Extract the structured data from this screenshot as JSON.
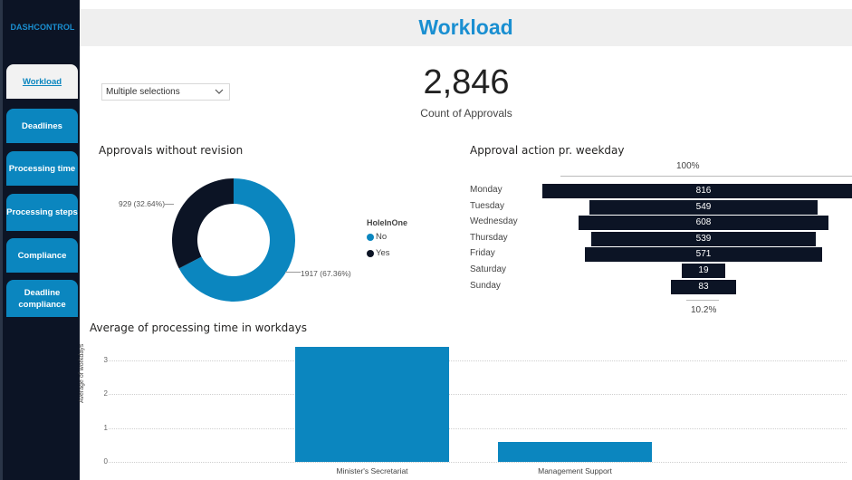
{
  "sidebar": {
    "brand": "DASHCONTROL",
    "items": [
      {
        "label": "Workload",
        "active": true
      },
      {
        "label": "Deadlines",
        "active": false
      },
      {
        "label": "Processing time",
        "active": false
      },
      {
        "label": "Processing steps",
        "active": false
      },
      {
        "label": "Compliance",
        "active": false
      },
      {
        "label": "Deadline compliance",
        "active": false
      }
    ]
  },
  "header": {
    "title": "Workload"
  },
  "slicer": {
    "value": "Multiple selections",
    "icon": "chevron-down-icon"
  },
  "kpi": {
    "value": "2,846",
    "label": "Count of Approvals"
  },
  "colors": {
    "primary": "#0b86bf",
    "dark": "#0c1425",
    "title": "#1a8fd1"
  },
  "donut": {
    "title": "Approvals without revision",
    "legend_title": "HoleInOne",
    "chart_data": {
      "type": "pie",
      "slices": [
        {
          "name": "No",
          "value": 1917,
          "label": "1917 (67.36%)",
          "color": "#0b86bf"
        },
        {
          "name": "Yes",
          "value": 929,
          "label": "929 (32.64%)",
          "color": "#0c1425"
        }
      ]
    }
  },
  "funnel": {
    "title": "Approval action pr. weekday",
    "top_label": "100%",
    "bottom_label": "10.2%",
    "chart_data": {
      "type": "bar",
      "categories": [
        "Monday",
        "Tuesday",
        "Wednesday",
        "Thursday",
        "Friday",
        "Saturday",
        "Sunday"
      ],
      "values": [
        816,
        549,
        608,
        539,
        571,
        19,
        83
      ]
    }
  },
  "bar_chart": {
    "title": "Average of processing time in workdays",
    "ylabel": "Average of workdays",
    "chart_data": {
      "type": "bar",
      "categories": [
        "Minister's Secretariat",
        "Management Support"
      ],
      "values": [
        3.4,
        0.6
      ],
      "ylim": [
        0,
        3.4
      ],
      "yticks": [
        "0",
        "1",
        "2",
        "3"
      ],
      "ylabel": "Average of workdays",
      "grid": true
    }
  }
}
